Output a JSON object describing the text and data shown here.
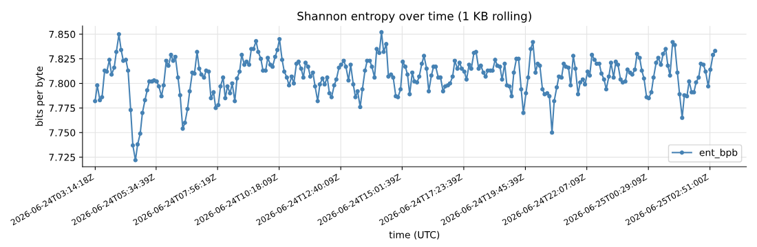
{
  "chart_data": {
    "type": "line",
    "title": "Shannon entropy over time (1 KB rolling)",
    "xlabel": "time (UTC)",
    "ylabel": "bits per byte",
    "x": [
      "2026-06-24T03:14",
      "2026-06-24T03:19",
      "2026-06-24T03:25",
      "2026-06-24T03:30",
      "2026-06-24T03:36",
      "2026-06-24T03:41",
      "2026-06-24T03:47",
      "2026-06-24T03:52",
      "2026-06-24T03:58",
      "2026-06-24T04:03",
      "2026-06-24T04:09",
      "2026-06-24T04:14",
      "2026-06-24T04:19",
      "2026-06-24T04:25",
      "2026-06-24T04:30",
      "2026-06-24T04:36",
      "2026-06-24T04:41",
      "2026-06-24T04:47",
      "2026-06-24T04:52",
      "2026-06-24T04:58",
      "2026-06-24T05:03",
      "2026-06-24T05:09",
      "2026-06-24T05:14",
      "2026-06-24T05:19",
      "2026-06-24T05:25",
      "2026-06-24T05:30",
      "2026-06-24T05:36",
      "2026-06-24T05:41",
      "2026-06-24T05:47",
      "2026-06-24T05:52",
      "2026-06-24T05:58",
      "2026-06-24T06:03",
      "2026-06-24T06:09",
      "2026-06-24T06:14",
      "2026-06-24T06:19",
      "2026-06-24T06:25",
      "2026-06-24T06:30",
      "2026-06-24T06:36",
      "2026-06-24T06:41",
      "2026-06-24T06:47",
      "2026-06-24T06:52",
      "2026-06-24T06:58",
      "2026-06-24T07:03",
      "2026-06-24T07:09",
      "2026-06-24T07:14",
      "2026-06-24T07:19",
      "2026-06-24T07:25",
      "2026-06-24T07:30",
      "2026-06-24T07:36",
      "2026-06-24T07:41",
      "2026-06-24T07:47",
      "2026-06-24T07:52",
      "2026-06-24T07:58",
      "2026-06-24T08:03",
      "2026-06-24T08:09",
      "2026-06-24T08:14",
      "2026-06-24T08:19",
      "2026-06-24T08:25",
      "2026-06-24T08:30",
      "2026-06-24T08:36",
      "2026-06-24T08:41",
      "2026-06-24T08:47",
      "2026-06-24T08:52",
      "2026-06-24T08:58",
      "2026-06-24T09:03",
      "2026-06-24T09:09",
      "2026-06-24T09:14",
      "2026-06-24T09:19",
      "2026-06-24T09:25",
      "2026-06-24T09:30",
      "2026-06-24T09:36",
      "2026-06-24T09:41",
      "2026-06-24T09:47",
      "2026-06-24T09:52",
      "2026-06-24T09:58",
      "2026-06-24T10:03",
      "2026-06-24T10:09",
      "2026-06-24T10:14",
      "2026-06-24T10:19",
      "2026-06-24T10:25",
      "2026-06-24T10:30",
      "2026-06-24T10:36",
      "2026-06-24T10:41",
      "2026-06-24T10:47",
      "2026-06-24T10:52",
      "2026-06-24T10:58",
      "2026-06-24T11:03",
      "2026-06-24T11:09",
      "2026-06-24T11:14",
      "2026-06-24T11:19",
      "2026-06-24T11:25",
      "2026-06-24T11:30",
      "2026-06-24T11:36",
      "2026-06-24T11:41",
      "2026-06-24T11:47",
      "2026-06-24T11:52",
      "2026-06-24T11:58",
      "2026-06-24T12:03",
      "2026-06-24T12:09",
      "2026-06-24T12:14",
      "2026-06-24T12:19",
      "2026-06-24T12:25",
      "2026-06-24T12:30",
      "2026-06-24T12:36",
      "2026-06-24T12:41",
      "2026-06-24T12:47",
      "2026-06-24T12:52",
      "2026-06-24T12:58",
      "2026-06-24T13:03",
      "2026-06-24T13:09",
      "2026-06-24T13:14",
      "2026-06-24T13:19",
      "2026-06-24T13:25",
      "2026-06-24T13:30",
      "2026-06-24T13:36",
      "2026-06-24T13:41",
      "2026-06-24T13:47",
      "2026-06-24T13:52",
      "2026-06-24T13:58",
      "2026-06-24T14:03",
      "2026-06-24T14:09",
      "2026-06-24T14:14",
      "2026-06-24T14:19",
      "2026-06-24T14:25",
      "2026-06-24T14:30",
      "2026-06-24T14:36",
      "2026-06-24T14:41",
      "2026-06-24T14:47",
      "2026-06-24T14:52",
      "2026-06-24T14:58",
      "2026-06-24T15:03",
      "2026-06-24T15:09",
      "2026-06-24T15:14",
      "2026-06-24T15:19",
      "2026-06-24T15:25",
      "2026-06-24T15:30",
      "2026-06-24T15:36",
      "2026-06-24T15:41",
      "2026-06-24T15:47",
      "2026-06-24T15:52",
      "2026-06-24T15:58",
      "2026-06-24T16:03",
      "2026-06-24T16:09",
      "2026-06-24T16:14",
      "2026-06-24T16:19",
      "2026-06-24T16:25",
      "2026-06-24T16:30",
      "2026-06-24T16:36",
      "2026-06-24T16:41",
      "2026-06-24T16:47",
      "2026-06-24T16:52",
      "2026-06-24T16:58",
      "2026-06-24T17:03",
      "2026-06-24T17:09",
      "2026-06-24T17:14",
      "2026-06-24T17:19",
      "2026-06-24T17:25",
      "2026-06-24T17:30",
      "2026-06-24T17:36",
      "2026-06-24T17:41",
      "2026-06-24T17:47",
      "2026-06-24T17:52",
      "2026-06-24T17:58",
      "2026-06-24T18:03",
      "2026-06-24T18:09",
      "2026-06-24T18:14",
      "2026-06-24T18:19",
      "2026-06-24T18:25",
      "2026-06-24T18:30",
      "2026-06-24T18:36",
      "2026-06-24T18:41",
      "2026-06-24T18:47",
      "2026-06-24T18:52",
      "2026-06-24T18:58",
      "2026-06-24T19:03",
      "2026-06-24T19:09",
      "2026-06-24T19:14",
      "2026-06-24T19:19",
      "2026-06-24T19:25",
      "2026-06-24T19:30",
      "2026-06-24T19:36",
      "2026-06-24T19:41",
      "2026-06-24T19:47",
      "2026-06-24T19:52",
      "2026-06-24T19:58",
      "2026-06-24T20:03",
      "2026-06-24T20:09",
      "2026-06-24T20:14",
      "2026-06-24T20:19",
      "2026-06-24T20:25",
      "2026-06-24T20:30",
      "2026-06-24T20:36",
      "2026-06-24T20:41",
      "2026-06-24T20:47",
      "2026-06-24T20:52",
      "2026-06-24T20:58",
      "2026-06-24T21:03",
      "2026-06-24T21:09",
      "2026-06-24T21:14",
      "2026-06-24T21:19",
      "2026-06-24T21:25",
      "2026-06-24T21:30",
      "2026-06-24T21:36",
      "2026-06-24T21:41",
      "2026-06-24T21:47",
      "2026-06-24T21:52",
      "2026-06-24T21:58",
      "2026-06-24T22:03",
      "2026-06-24T22:09",
      "2026-06-24T22:14",
      "2026-06-24T22:19",
      "2026-06-24T22:25",
      "2026-06-24T22:30",
      "2026-06-24T22:36",
      "2026-06-24T22:41",
      "2026-06-24T22:47",
      "2026-06-24T22:52",
      "2026-06-24T22:58",
      "2026-06-24T23:03",
      "2026-06-24T23:09",
      "2026-06-24T23:14",
      "2026-06-24T23:19",
      "2026-06-24T23:25",
      "2026-06-24T23:30",
      "2026-06-24T23:36",
      "2026-06-24T23:41",
      "2026-06-24T23:47",
      "2026-06-24T23:52",
      "2026-06-24T23:58",
      "2026-06-25T00:03",
      "2026-06-25T00:09",
      "2026-06-25T00:14",
      "2026-06-25T00:19",
      "2026-06-25T00:25",
      "2026-06-25T00:30",
      "2026-06-25T00:36",
      "2026-06-25T00:41",
      "2026-06-25T00:47",
      "2026-06-25T00:52",
      "2026-06-25T00:58",
      "2026-06-25T01:03",
      "2026-06-25T01:09",
      "2026-06-25T01:14",
      "2026-06-25T01:19",
      "2026-06-25T01:25",
      "2026-06-25T01:30",
      "2026-06-25T01:36",
      "2026-06-25T01:41",
      "2026-06-25T01:47",
      "2026-06-25T01:52",
      "2026-06-25T01:58",
      "2026-06-25T02:03",
      "2026-06-25T02:09",
      "2026-06-25T02:14",
      "2026-06-25T02:19",
      "2026-06-25T02:25",
      "2026-06-25T02:30",
      "2026-06-25T02:36",
      "2026-06-25T02:41",
      "2026-06-25T02:47",
      "2026-06-25T02:52",
      "2026-06-25T02:58",
      "2026-06-25T03:03"
    ],
    "series": [
      {
        "name": "ent_bpb",
        "color": "#4682b4",
        "values": [
          7.782,
          7.798,
          7.783,
          7.786,
          7.813,
          7.812,
          7.824,
          7.809,
          7.816,
          7.832,
          7.85,
          7.834,
          7.823,
          7.824,
          7.813,
          7.773,
          7.737,
          7.722,
          7.738,
          7.749,
          7.77,
          7.783,
          7.793,
          7.802,
          7.802,
          7.803,
          7.802,
          7.797,
          7.787,
          7.798,
          7.823,
          7.818,
          7.829,
          7.823,
          7.827,
          7.806,
          7.788,
          7.754,
          7.76,
          7.774,
          7.792,
          7.811,
          7.81,
          7.832,
          7.815,
          7.809,
          7.806,
          7.813,
          7.812,
          7.785,
          7.791,
          7.775,
          7.778,
          7.797,
          7.806,
          7.785,
          7.797,
          7.79,
          7.8,
          7.782,
          7.805,
          7.812,
          7.829,
          7.819,
          7.822,
          7.819,
          7.835,
          7.835,
          7.843,
          7.832,
          7.825,
          7.813,
          7.813,
          7.826,
          7.819,
          7.817,
          7.827,
          7.834,
          7.845,
          7.824,
          7.812,
          7.806,
          7.798,
          7.807,
          7.8,
          7.82,
          7.822,
          7.815,
          7.806,
          7.821,
          7.817,
          7.807,
          7.811,
          7.797,
          7.782,
          7.799,
          7.805,
          7.799,
          7.806,
          7.79,
          7.786,
          7.798,
          7.804,
          7.816,
          7.819,
          7.823,
          7.817,
          7.803,
          7.819,
          7.799,
          7.786,
          7.792,
          7.776,
          7.794,
          7.813,
          7.823,
          7.823,
          7.817,
          7.806,
          7.835,
          7.831,
          7.852,
          7.832,
          7.84,
          7.807,
          7.809,
          7.806,
          7.787,
          7.786,
          7.794,
          7.822,
          7.817,
          7.809,
          7.789,
          7.811,
          7.802,
          7.801,
          7.807,
          7.82,
          7.828,
          7.815,
          7.792,
          7.808,
          7.817,
          7.817,
          7.806,
          7.806,
          7.792,
          7.797,
          7.798,
          7.8,
          7.807,
          7.823,
          7.815,
          7.821,
          7.815,
          7.812,
          7.804,
          7.819,
          7.815,
          7.831,
          7.832,
          7.815,
          7.818,
          7.811,
          7.807,
          7.813,
          7.813,
          7.813,
          7.824,
          7.818,
          7.817,
          7.804,
          7.82,
          7.798,
          7.797,
          7.787,
          7.811,
          7.825,
          7.825,
          7.794,
          7.77,
          7.79,
          7.806,
          7.835,
          7.842,
          7.811,
          7.82,
          7.818,
          7.794,
          7.789,
          7.79,
          7.787,
          7.75,
          7.782,
          7.796,
          7.807,
          7.806,
          7.82,
          7.817,
          7.816,
          7.798,
          7.828,
          7.815,
          7.789,
          7.801,
          7.804,
          7.799,
          7.812,
          7.808,
          7.829,
          7.824,
          7.82,
          7.82,
          7.81,
          7.804,
          7.794,
          7.807,
          7.821,
          7.806,
          7.822,
          7.819,
          7.804,
          7.801,
          7.802,
          7.814,
          7.811,
          7.809,
          7.814,
          7.83,
          7.826,
          7.813,
          7.805,
          7.786,
          7.785,
          7.791,
          7.806,
          7.821,
          7.826,
          7.819,
          7.83,
          7.835,
          7.818,
          7.808,
          7.842,
          7.839,
          7.811,
          7.789,
          7.765,
          7.788,
          7.787,
          7.802,
          7.791,
          7.791,
          7.801,
          7.806,
          7.82,
          7.819,
          7.812,
          7.797,
          7.814,
          7.829,
          7.833
        ]
      }
    ],
    "xlim": [
      "2026-06-24T02:45",
      "2026-06-25T04:15"
    ],
    "ylim": [
      7.7153,
      7.8584
    ],
    "xticks": [
      "2026-06-24T03:14:18Z",
      "2026-06-24T05:34:39Z",
      "2026-06-24T07:56:19Z",
      "2026-06-24T10:18:09Z",
      "2026-06-24T12:40:09Z",
      "2026-06-24T15:01:39Z",
      "2026-06-24T17:23:39Z",
      "2026-06-24T19:45:39Z",
      "2026-06-24T22:07:09Z",
      "2026-06-25T00:29:09Z",
      "2026-06-25T02:51:00Z"
    ],
    "yticks": [
      7.725,
      {
        "value": 7.75,
        "label": "7.750"
      },
      7.775,
      {
        "value": 7.8,
        "label": "7.800"
      },
      7.825,
      {
        "value": 7.85,
        "label": "7.850"
      }
    ],
    "grid": true,
    "legend": "lower right",
    "marker": "circle",
    "line_style": "solid"
  }
}
